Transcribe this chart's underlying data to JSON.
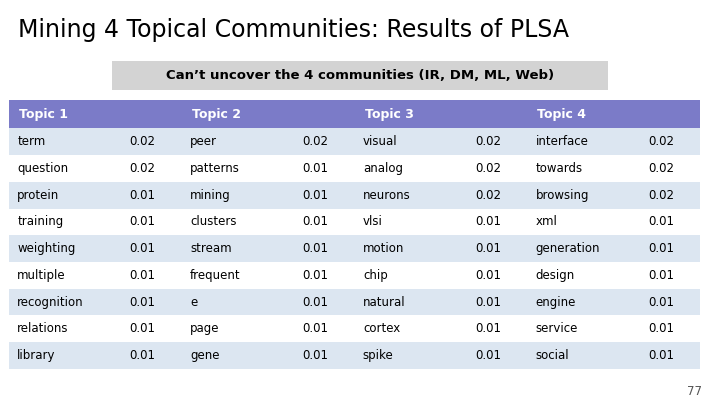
{
  "title": "Mining 4 Topical Communities: Results of PLSA",
  "subtitle": "Can’t uncover the 4 communities (IR, DM, ML, Web)",
  "subtitle_bg": "#d3d3d3",
  "header_bg": "#7b7bc8",
  "header_text_color": "#ffffff",
  "row_bg_odd": "#dce6f1",
  "row_bg_even": "#ffffff",
  "headers": [
    "Topic 1",
    "Topic 2",
    "Topic 3",
    "Topic 4"
  ],
  "topics": [
    [
      [
        "term",
        "0.02"
      ],
      [
        "question",
        "0.02"
      ],
      [
        "protein",
        "0.01"
      ],
      [
        "training",
        "0.01"
      ],
      [
        "weighting",
        "0.01"
      ],
      [
        "multiple",
        "0.01"
      ],
      [
        "recognition",
        "0.01"
      ],
      [
        "relations",
        "0.01"
      ],
      [
        "library",
        "0.01"
      ]
    ],
    [
      [
        "peer",
        "0.02"
      ],
      [
        "patterns",
        "0.01"
      ],
      [
        "mining",
        "0.01"
      ],
      [
        "clusters",
        "0.01"
      ],
      [
        "stream",
        "0.01"
      ],
      [
        "frequent",
        "0.01"
      ],
      [
        "e",
        "0.01"
      ],
      [
        "page",
        "0.01"
      ],
      [
        "gene",
        "0.01"
      ]
    ],
    [
      [
        "visual",
        "0.02"
      ],
      [
        "analog",
        "0.02"
      ],
      [
        "neurons",
        "0.02"
      ],
      [
        "vlsi",
        "0.01"
      ],
      [
        "motion",
        "0.01"
      ],
      [
        "chip",
        "0.01"
      ],
      [
        "natural",
        "0.01"
      ],
      [
        "cortex",
        "0.01"
      ],
      [
        "spike",
        "0.01"
      ]
    ],
    [
      [
        "interface",
        "0.02"
      ],
      [
        "towards",
        "0.02"
      ],
      [
        "browsing",
        "0.02"
      ],
      [
        "xml",
        "0.01"
      ],
      [
        "generation",
        "0.01"
      ],
      [
        "design",
        "0.01"
      ],
      [
        "engine",
        "0.01"
      ],
      [
        "service",
        "0.01"
      ],
      [
        "social",
        "0.01"
      ]
    ]
  ],
  "page_number": "77",
  "title_fontsize": 17,
  "subtitle_fontsize": 9.5,
  "header_fontsize": 9,
  "cell_fontsize": 8.5
}
